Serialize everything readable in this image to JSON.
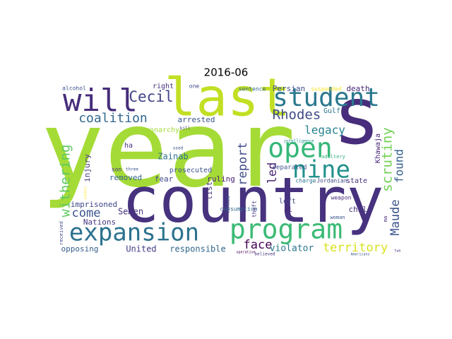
{
  "chart_data": {
    "type": "wordcloud",
    "title": "2016-06",
    "words": [
      {
        "text": "year",
        "color": "#a5db36"
      },
      {
        "text": "country",
        "color": "#46327e"
      },
      {
        "text": "s",
        "color": "#472d7b"
      },
      {
        "text": "last",
        "color": "#c2df23"
      },
      {
        "text": "student",
        "color": "#2a788e"
      },
      {
        "text": "will",
        "color": "#472d7b"
      },
      {
        "text": "open",
        "color": "#35b779"
      },
      {
        "text": "nine",
        "color": "#21918c"
      },
      {
        "text": "program",
        "color": "#3bbb75"
      },
      {
        "text": "expansion",
        "color": "#2c728e"
      },
      {
        "text": "Cecil",
        "color": "#414487"
      },
      {
        "text": "Rhodes",
        "color": "#3e4a89"
      },
      {
        "text": "coalition",
        "color": "#31688e"
      },
      {
        "text": "legacy",
        "color": "#26828e"
      },
      {
        "text": "scrutiny",
        "color": "#73d055"
      },
      {
        "text": "found",
        "color": "#355f8d"
      },
      {
        "text": "report",
        "color": "#3e4989"
      },
      {
        "text": "led",
        "color": "#482475"
      },
      {
        "text": "withering",
        "color": "#5ec962"
      },
      {
        "text": "Maude",
        "color": "#3b528b"
      },
      {
        "text": "territory",
        "color": "#d8e219"
      },
      {
        "text": "face",
        "color": "#440154"
      },
      {
        "text": "come",
        "color": "#3a548c"
      },
      {
        "text": "violator",
        "color": "#2a768e"
      },
      {
        "text": "responsible",
        "color": "#31688e"
      },
      {
        "text": "United",
        "color": "#433e85"
      },
      {
        "text": "opposing",
        "color": "#355f8d"
      },
      {
        "text": "Nations",
        "color": "#453781"
      },
      {
        "text": "imprisoned",
        "color": "#404688"
      },
      {
        "text": "Semen",
        "color": "#46327e"
      },
      {
        "text": "removed",
        "color": "#32648e"
      },
      {
        "text": "injury",
        "color": "#453781"
      },
      {
        "text": "Zainab",
        "color": "#2c728e"
      },
      {
        "text": "ha",
        "color": "#46337e"
      },
      {
        "text": "fear",
        "color": "#3f4889"
      },
      {
        "text": "arrested",
        "color": "#39558c"
      },
      {
        "text": "ruling",
        "color": "#482173"
      },
      {
        "text": "list",
        "color": "#46327e"
      },
      {
        "text": "prosecuted",
        "color": "#3b528b"
      },
      {
        "text": "monarchy",
        "color": "#a0da39"
      },
      {
        "text": "right",
        "color": "#46307e"
      },
      {
        "text": "Persian",
        "color": "#3d4e8a"
      },
      {
        "text": "Gulf",
        "color": "#2a788e"
      },
      {
        "text": "death",
        "color": "#482878"
      },
      {
        "text": "suspended",
        "color": "#fde725"
      },
      {
        "text": "Khawaja",
        "color": "#482475"
      },
      {
        "text": "alcohol",
        "color": "#3b528b"
      },
      {
        "text": "one",
        "color": "#3e4a89"
      },
      {
        "text": "sentence",
        "color": "#31688e"
      },
      {
        "text": "kill",
        "color": "#443983"
      },
      {
        "text": "used",
        "color": "#3b528b"
      },
      {
        "text": "intelligence",
        "color": "#21918c"
      },
      {
        "text": "adultery",
        "color": "#2db27d"
      },
      {
        "text": "separated",
        "color": "#3b528b"
      },
      {
        "text": "state",
        "color": "#46337e"
      },
      {
        "text": "charge",
        "color": "#2c728e"
      },
      {
        "text": "Jordanian",
        "color": "#3e4989"
      },
      {
        "text": "left",
        "color": "#414487"
      },
      {
        "text": "al",
        "color": "#482878"
      },
      {
        "text": "child",
        "color": "#46327e"
      },
      {
        "text": "weapon",
        "color": "#472c7a"
      },
      {
        "text": "woman",
        "color": "#3b528b"
      },
      {
        "text": "consumption",
        "color": "#31688e"
      },
      {
        "text": "linked",
        "color": "#3e4a89"
      },
      {
        "text": "theft",
        "color": "#453781"
      },
      {
        "text": "ma",
        "color": "#482475"
      },
      {
        "text": "son",
        "color": "#46337e"
      },
      {
        "text": "three",
        "color": "#3b528b"
      },
      {
        "text": "others",
        "color": "#fde725"
      },
      {
        "text": "received",
        "color": "#3e4989"
      },
      {
        "text": "operative",
        "color": "#440154"
      },
      {
        "text": "believed",
        "color": "#46327e"
      },
      {
        "text": "Americans",
        "color": "#3b528b"
      },
      {
        "text": "two",
        "color": "#482878"
      }
    ]
  }
}
